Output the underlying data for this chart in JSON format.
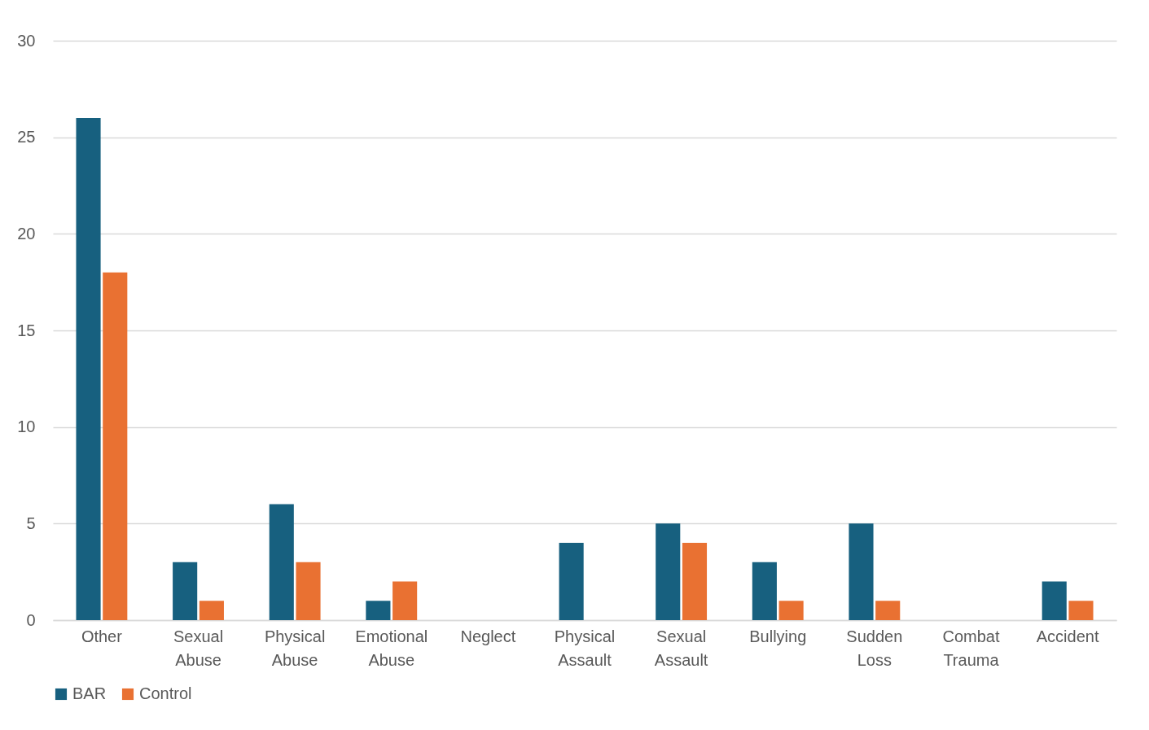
{
  "chart_data": {
    "type": "bar",
    "categories": [
      "Other",
      "Sexual Abuse",
      "Physical Abuse",
      "Emotional Abuse",
      "Neglect",
      "Physical Assault",
      "Sexual Assault",
      "Bullying",
      "Sudden Loss",
      "Combat Trauma",
      "Accident"
    ],
    "series": [
      {
        "name": "BAR",
        "color": "#17607f",
        "values": [
          26,
          3,
          6,
          1,
          0,
          4,
          5,
          3,
          5,
          0,
          2
        ]
      },
      {
        "name": "Control",
        "color": "#e97132",
        "values": [
          18,
          1,
          3,
          2,
          0,
          0,
          4,
          1,
          1,
          0,
          1
        ]
      }
    ],
    "ylim": [
      0,
      30
    ],
    "yticks": [
      0,
      5,
      10,
      15,
      20,
      25,
      30
    ],
    "grid": "y",
    "legend": "bottom"
  }
}
